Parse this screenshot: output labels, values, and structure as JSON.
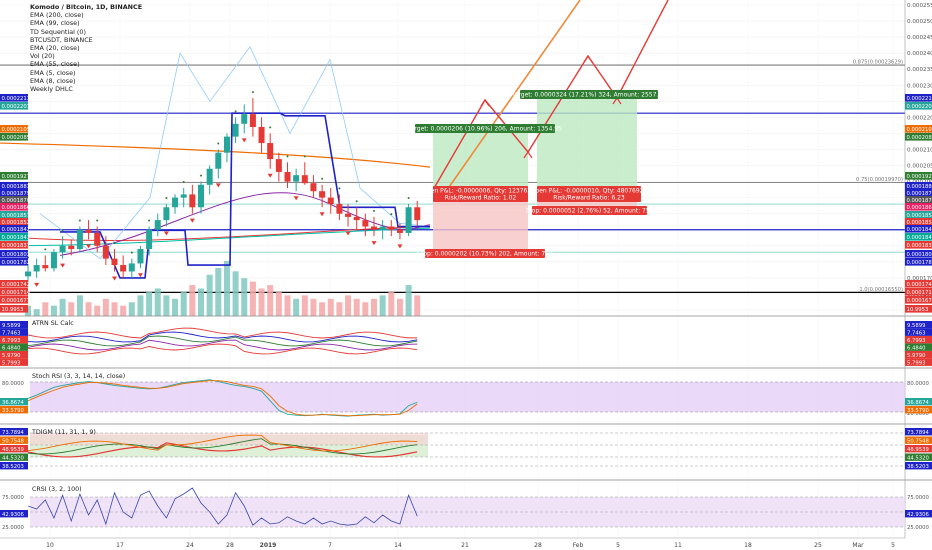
{
  "header": {
    "symbol": "Komodo / Bitcoin, 1D, BINANCE",
    "indicators": [
      "EMA (200, close)",
      "EMA (99, close)",
      "TD Sequential (0)",
      "BTCUSDT, BINANCE",
      "EMA (20, close)",
      "Vol (20)",
      "EMA (55, close)",
      "EMA (5, close)",
      "EMA (8, close)",
      "Weekly DHLC"
    ]
  },
  "axes": {
    "right_main": [
      "0.0002550",
      "0.0002500",
      "0.0002450",
      "0.0002400",
      "0.0002350",
      "0.0002300",
      "0.0002250",
      "0.0002200",
      "0.0002150",
      "0.0002100",
      "0.0002050",
      "0.0002000",
      "0.0001950",
      "0.0001900",
      "0.0001850",
      "0.0001800",
      "0.0001750",
      "0.0001700",
      "0.0001650",
      "0.0001600"
    ],
    "dates": [
      "10",
      "17",
      "24",
      "28",
      "2019",
      "7",
      "14",
      "21",
      "28",
      "Feb",
      "5",
      "11",
      "18",
      "25",
      "Mar",
      "5"
    ]
  },
  "price_tags_right": [
    {
      "text": "0.0002213",
      "color": "#1e22c8"
    },
    {
      "text": "0.0002207",
      "color": "#26a69a"
    },
    {
      "text": "0.0002105",
      "color": "#ef6c00"
    },
    {
      "text": "0.0002085",
      "color": "#2e7d32"
    },
    {
      "text": "0.0001927",
      "color": "#2e7d32"
    },
    {
      "text": "0.0001883",
      "color": "#1e22c8"
    },
    {
      "text": "0.0001879",
      "color": "#1e22c8"
    },
    {
      "text": "0.0001870",
      "color": "#555555"
    },
    {
      "text": "0.0001866",
      "color": "#e91e63"
    },
    {
      "text": "0.0001857",
      "color": "#26a69a"
    },
    {
      "text": "0.0001852",
      "color": "#e53935"
    },
    {
      "text": "0.0001842",
      "color": "#1e22c8"
    },
    {
      "text": "0.0001841",
      "color": "#00a896"
    },
    {
      "text": "0.0001831",
      "color": "#e53935"
    },
    {
      "text": "0.0001803",
      "color": "#1e22c8"
    },
    {
      "text": "0.0001782",
      "color": "#1e22c8"
    },
    {
      "text": "0.0001742",
      "color": "#e53935"
    },
    {
      "text": "0.0001714",
      "color": "#e53935"
    },
    {
      "text": "0.0001677",
      "color": "#e53935"
    },
    {
      "text": "10.9953",
      "color": "#e53935"
    }
  ],
  "fib_labels": [
    "0.875(0.00023629)",
    "0.75(0.00019970)",
    "1.0(0.00016550)"
  ],
  "trades": {
    "target1": "Target: 0.0000206 (10.96%) 206, Amount: 1354.95",
    "target2": "Target: 0.0000324 (17.21%) 324, Amount: 2557.69",
    "open1_line1": "Open P&L: -0.0000006, Qty: 12376237",
    "open1_line2": "Risk/Reward Ratio: 1.02",
    "open2_line1": "Open P&L: -0.0000010, Qty: 48076923",
    "open2_line2": "Risk/Reward Ratio: 6.23",
    "stop1": "Stop: 0.0000202 (10.73%) 202, Amount: 750",
    "stop2": "Stop: 0.0000052 (2.76%) 52, Amount: 750"
  },
  "panels": {
    "atrn": {
      "title": "ATRN SL Calc",
      "tags": [
        {
          "text": "9.5899",
          "color": "#1e22c8"
        },
        {
          "text": "7.7463",
          "color": "#1e22c8"
        },
        {
          "text": "6.7993",
          "color": "#e53935"
        },
        {
          "text": "6.4840",
          "color": "#2e7d32"
        },
        {
          "text": "5.9790",
          "color": "#e53935"
        },
        {
          "text": "5.7993",
          "color": "#e53935"
        }
      ]
    },
    "stochrsi": {
      "title": "Stoch RSI (3, 3, 14, 14, close)",
      "left_tick": "80.0000",
      "right_ticks": [
        "80.0000",
        "20.0000"
      ],
      "tags": [
        {
          "text": "36.8674",
          "color": "#26a69a"
        },
        {
          "text": "33.5790",
          "color": "#ef6c00"
        }
      ]
    },
    "tdi": {
      "title": "TDIGM (11, 31, 1, 9)",
      "tags": [
        {
          "text": "73.7894",
          "color": "#1e22c8"
        },
        {
          "text": "50.7548",
          "color": "#ef6c00"
        },
        {
          "text": "48.9539",
          "color": "#e53935"
        },
        {
          "text": "44.5320",
          "color": "#2e7d32"
        },
        {
          "text": "38.5203",
          "color": "#1e22c8"
        }
      ]
    },
    "crsi": {
      "title": "CRSI (3, 2, 100)",
      "left_ticks": [
        "75.0000",
        "50.0000",
        "25.0000"
      ],
      "right_ticks": [
        "75.0000",
        "25.0000"
      ],
      "tag": {
        "text": "42.9306",
        "color": "#1e22c8"
      }
    }
  },
  "chart_data": {
    "type": "candlestick",
    "title": "Komodo / Bitcoin, 1D, BINANCE",
    "x_start": "2018-12-05",
    "candles": [
      [
        0.0001705,
        0.0001745,
        0.000168,
        0.000172
      ],
      [
        0.000172,
        0.000176,
        0.00017,
        0.000174
      ],
      [
        0.000174,
        0.000177,
        0.000172,
        0.000173
      ],
      [
        0.000173,
        0.000179,
        0.000172,
        0.000178
      ],
      [
        0.000178,
        0.000183,
        0.000176,
        0.00018
      ],
      [
        0.00018,
        0.000182,
        0.000177,
        0.000179
      ],
      [
        0.000179,
        0.000186,
        0.000178,
        0.000185
      ],
      [
        0.000185,
        0.000188,
        0.000182,
        0.000184
      ],
      [
        0.000184,
        0.000186,
        0.000178,
        0.00018
      ],
      [
        0.00018,
        0.000183,
        0.000174,
        0.000176
      ],
      [
        0.000176,
        0.000179,
        0.000172,
        0.000174
      ],
      [
        0.000174,
        0.000177,
        0.00017,
        0.000172
      ],
      [
        0.000172,
        0.000176,
        0.00017,
        0.0001745
      ],
      [
        0.0001745,
        0.00018,
        0.000173,
        0.000179
      ],
      [
        0.000179,
        0.000186,
        0.000177,
        0.000185
      ],
      [
        0.000185,
        0.00019,
        0.000183,
        0.000188
      ],
      [
        0.000188,
        0.000193,
        0.000186,
        0.000192
      ],
      [
        0.000192,
        0.000196,
        0.00019,
        0.000195
      ],
      [
        0.000195,
        0.000198,
        0.000192,
        0.000196
      ],
      [
        0.000196,
        0.000199,
        0.00019,
        0.000192
      ],
      [
        0.000192,
        0.0002,
        0.00019,
        0.000199
      ],
      [
        0.000199,
        0.000205,
        0.000196,
        0.000204
      ],
      [
        0.000204,
        0.00021,
        0.000201,
        0.000209
      ],
      [
        0.000209,
        0.000215,
        0.000206,
        0.000214
      ],
      [
        0.000214,
        0.00022,
        0.000212,
        0.000218
      ],
      [
        0.000218,
        0.000224,
        0.000215,
        0.000221
      ],
      [
        0.000221,
        0.000226,
        0.000214,
        0.000217
      ],
      [
        0.000217,
        0.00022,
        0.000209,
        0.000212
      ],
      [
        0.000212,
        0.000215,
        0.000204,
        0.000207
      ],
      [
        0.000207,
        0.000209,
        0.0002,
        0.000203
      ],
      [
        0.000203,
        0.000206,
        0.000198,
        0.0002
      ],
      [
        0.0002,
        0.000204,
        0.000197,
        0.000202
      ],
      [
        0.000202,
        0.000206,
        0.000199,
        0.0001995
      ],
      [
        0.0001995,
        0.000202,
        0.000195,
        0.000197
      ],
      [
        0.000197,
        0.000199,
        0.000192,
        0.000195
      ],
      [
        0.000195,
        0.000198,
        0.00019,
        0.000193
      ],
      [
        0.000193,
        0.000196,
        0.000188,
        0.00019
      ],
      [
        0.00019,
        0.000193,
        0.000186,
        0.000189
      ],
      [
        0.000189,
        0.000192,
        0.000185,
        0.000188
      ],
      [
        0.000188,
        0.00019,
        0.000183,
        0.000186
      ],
      [
        0.000186,
        0.000189,
        0.000183,
        0.000185
      ],
      [
        0.000185,
        0.000188,
        0.000182,
        0.000186
      ],
      [
        0.000186,
        0.000188,
        0.000183,
        0.000185
      ],
      [
        0.000185,
        0.000187,
        0.000182,
        0.000184
      ],
      [
        0.000184,
        0.000193,
        0.000183,
        0.000192
      ],
      [
        0.000192,
        0.000194,
        0.000186,
        0.000188
      ]
    ],
    "volume": [
      3,
      2,
      4,
      3,
      5,
      4,
      6,
      4,
      3,
      5,
      4,
      3,
      4,
      6,
      7,
      8,
      6,
      5,
      7,
      9,
      8,
      12,
      14,
      16,
      13,
      11,
      10,
      8,
      9,
      7,
      6,
      5,
      6,
      5,
      4,
      5,
      4,
      6,
      5,
      4,
      5,
      6,
      7,
      5,
      9,
      6
    ],
    "ema200": {
      "from": 0.000208,
      "to": 0.000204
    },
    "fib_levels": [
      0.00023629,
      0.0001997,
      0.0001655
    ],
    "stoch_rsi": {
      "k": [
        45,
        52,
        60,
        68,
        72,
        75,
        78,
        80,
        78,
        75,
        72,
        70,
        68,
        66,
        65,
        66,
        70,
        74,
        78,
        80,
        82,
        84,
        80,
        76,
        72,
        70,
        66,
        60,
        40,
        20,
        12,
        10,
        9,
        10,
        12,
        10,
        9,
        8,
        10,
        11,
        12,
        10,
        11,
        13,
        30,
        37
      ],
      "d": [
        40,
        48,
        55,
        62,
        68,
        72,
        75,
        78,
        78,
        77,
        75,
        72,
        70,
        68,
        66,
        66,
        68,
        72,
        76,
        78,
        80,
        82,
        82,
        80,
        76,
        72,
        70,
        65,
        50,
        30,
        18,
        12,
        10,
        10,
        11,
        11,
        10,
        9,
        9,
        10,
        11,
        11,
        11,
        12,
        20,
        33.6
      ]
    },
    "crsi": [
      60,
      55,
      70,
      40,
      78,
      35,
      80,
      45,
      70,
      30,
      82,
      50,
      40,
      78,
      85,
      60,
      40,
      72,
      80,
      90,
      65,
      50,
      30,
      45,
      82,
      60,
      28,
      40,
      30,
      32,
      42,
      35,
      30,
      40,
      30,
      35,
      30,
      28,
      30,
      42,
      32,
      45,
      35,
      30,
      78,
      43
    ]
  }
}
